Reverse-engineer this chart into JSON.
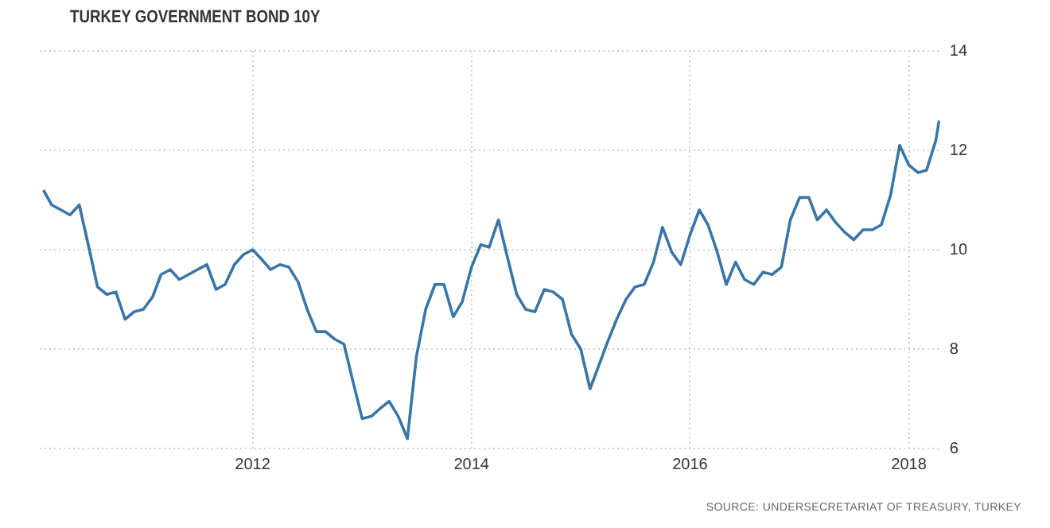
{
  "chart_data": {
    "type": "line",
    "title": "TURKEY GOVERNMENT BOND 10Y",
    "annotations": [
      "SOURCE: UNDERSECRETARIAT OF TREASURY, TURKEY"
    ],
    "x": [
      "2010-02",
      "2010-03",
      "2010-04",
      "2010-05",
      "2010-06",
      "2010-07",
      "2010-08",
      "2010-09",
      "2010-10",
      "2010-11",
      "2010-12",
      "2011-01",
      "2011-02",
      "2011-03",
      "2011-04",
      "2011-05",
      "2011-06",
      "2011-07",
      "2011-08",
      "2011-09",
      "2011-10",
      "2011-11",
      "2011-12",
      "2012-01",
      "2012-02",
      "2012-03",
      "2012-04",
      "2012-05",
      "2012-06",
      "2012-07",
      "2012-08",
      "2012-09",
      "2012-10",
      "2012-11",
      "2012-12",
      "2013-01",
      "2013-02",
      "2013-03",
      "2013-04",
      "2013-05",
      "2013-06",
      "2013-07",
      "2013-08",
      "2013-09",
      "2013-10",
      "2013-11",
      "2013-12",
      "2014-01",
      "2014-02",
      "2014-03",
      "2014-04",
      "2014-05",
      "2014-06",
      "2014-07",
      "2014-08",
      "2014-09",
      "2014-10",
      "2014-11",
      "2014-12",
      "2015-01",
      "2015-02",
      "2015-03",
      "2015-04",
      "2015-05",
      "2015-06",
      "2015-07",
      "2015-08",
      "2015-09",
      "2015-10",
      "2015-11",
      "2015-12",
      "2016-01",
      "2016-02",
      "2016-03",
      "2016-04",
      "2016-05",
      "2016-06",
      "2016-07",
      "2016-08",
      "2016-09",
      "2016-10",
      "2016-11",
      "2016-12",
      "2017-01",
      "2017-02",
      "2017-03",
      "2017-04",
      "2017-05",
      "2017-06",
      "2017-07",
      "2017-08",
      "2017-09",
      "2017-10",
      "2017-11",
      "2017-12",
      "2018-01",
      "2018-02",
      "2018-03",
      "2018-04",
      "2018-04-12"
    ],
    "series": [
      {
        "color": "#3a75a8",
        "values": [
          11.2,
          10.9,
          10.8,
          10.7,
          10.9,
          10.1,
          9.25,
          9.1,
          9.15,
          8.6,
          8.75,
          8.8,
          9.05,
          9.5,
          9.6,
          9.4,
          9.5,
          9.6,
          9.7,
          9.2,
          9.3,
          9.7,
          9.9,
          10.0,
          9.8,
          9.6,
          9.7,
          9.65,
          9.35,
          8.8,
          8.35,
          8.35,
          8.2,
          8.1,
          7.35,
          6.6,
          6.65,
          6.8,
          6.95,
          6.65,
          6.2,
          7.85,
          8.8,
          9.3,
          9.3,
          8.65,
          8.95,
          9.65,
          10.1,
          10.05,
          10.6,
          9.85,
          9.1,
          8.8,
          8.75,
          9.2,
          9.15,
          9.0,
          8.3,
          8.0,
          7.2,
          7.65,
          8.15,
          8.6,
          9.0,
          9.25,
          9.3,
          9.75,
          10.45,
          9.95,
          9.7,
          10.3,
          10.8,
          10.5,
          9.95,
          9.3,
          9.75,
          9.4,
          9.3,
          9.55,
          9.5,
          9.65,
          10.6,
          11.05,
          11.05,
          10.6,
          10.8,
          10.55,
          10.35,
          10.2,
          10.4,
          10.4,
          10.5,
          11.1,
          12.1,
          11.7,
          11.55,
          11.6,
          12.2,
          12.6
        ]
      }
    ],
    "xlim": [
      "2010-01-20",
      "2018-04-15"
    ],
    "xticks": [
      {
        "value": "2012",
        "label": "2012"
      },
      {
        "value": "2014",
        "label": "2014"
      },
      {
        "value": "2016",
        "label": "2016"
      },
      {
        "value": "2018",
        "label": "2018"
      }
    ],
    "ylim": [
      6,
      14
    ],
    "yticks": [
      6,
      8,
      10,
      12,
      14
    ],
    "grid": true,
    "legend": false,
    "marker": "none",
    "line_style": "solid"
  }
}
